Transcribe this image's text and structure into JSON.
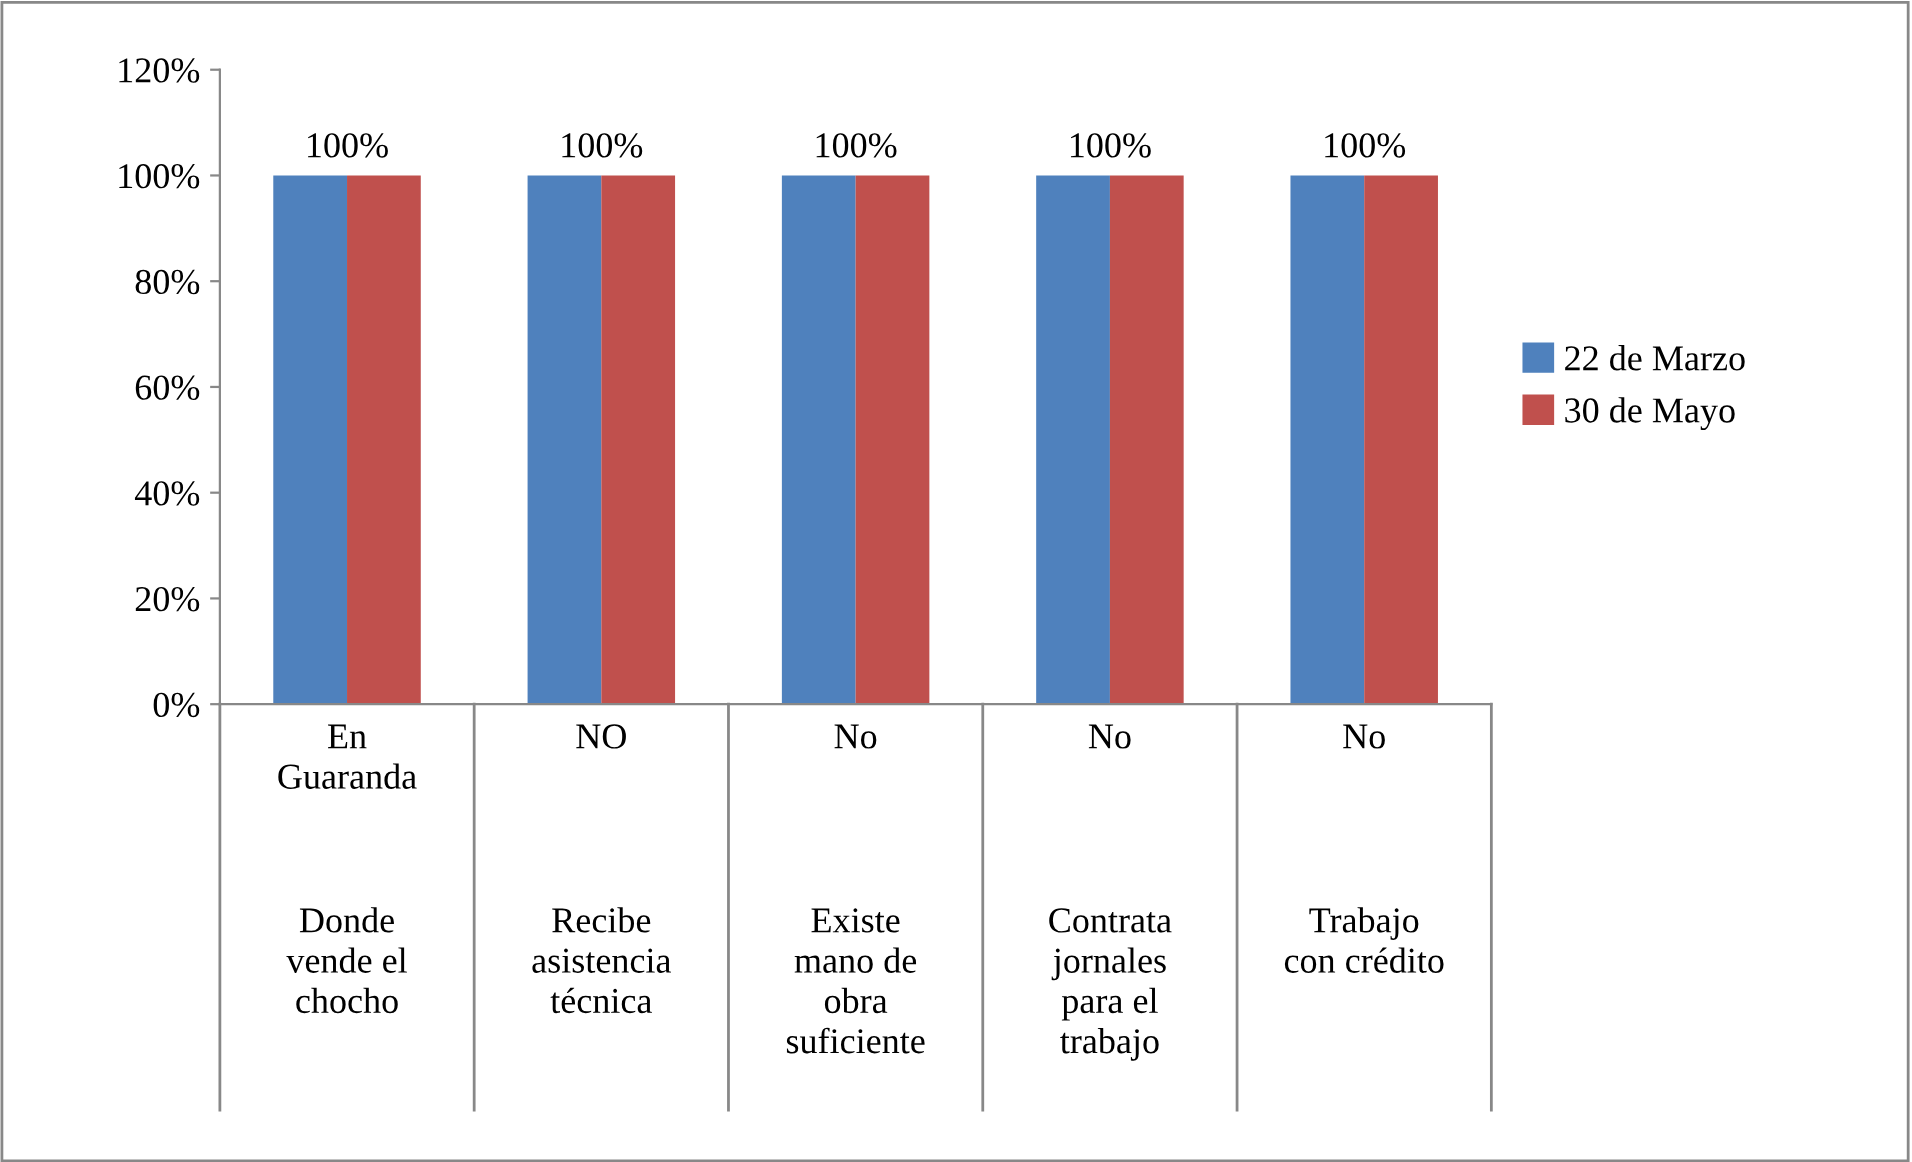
{
  "chart_data": {
    "type": "bar",
    "categories": [
      "En\nGuaranda\n\nDonde\nvende el\nchocho",
      "NO\n\nRecibe\nasistencia\ntécnica",
      "No\n\nExiste\nmano de\nobra\nsuficiente",
      "No\n\nContrata\njornales\npara el\ntrabajo",
      "No\n\nTrabajo\ncon crédito"
    ],
    "series": [
      {
        "name": "22 de Marzo",
        "color": "#4f81bd",
        "values": [
          100,
          100,
          100,
          100,
          100
        ],
        "value_labels": [
          "100%",
          "100%",
          "100%",
          "100%",
          "100%"
        ]
      },
      {
        "name": "30 de Mayo",
        "color": "#c0504d",
        "values": [
          100,
          100,
          100,
          100,
          100
        ]
      }
    ],
    "ylim": [
      0,
      120
    ],
    "yticks": [
      {
        "value": 0,
        "label": "0%"
      },
      {
        "value": 20,
        "label": "20%"
      },
      {
        "value": 40,
        "label": "40%"
      },
      {
        "value": 60,
        "label": "60%"
      },
      {
        "value": 80,
        "label": "80%"
      },
      {
        "value": 100,
        "label": "100%"
      },
      {
        "value": 120,
        "label": "120%"
      }
    ],
    "grid": false,
    "legend": "right"
  }
}
